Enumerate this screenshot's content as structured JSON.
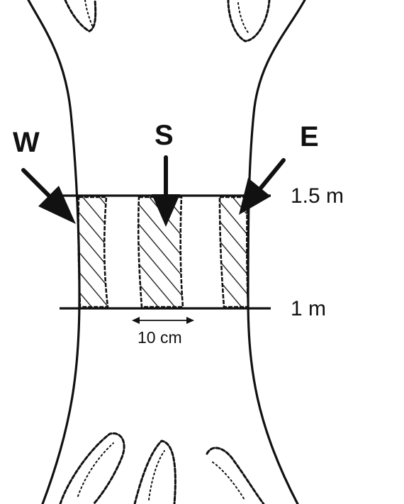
{
  "directions": {
    "west": "W",
    "south": "S",
    "east": "E"
  },
  "heights": {
    "upper": "1.5 m",
    "lower": "1 m"
  },
  "width_label": "10 cm",
  "colors": {
    "ink": "#111111",
    "background": "#ffffff"
  }
}
